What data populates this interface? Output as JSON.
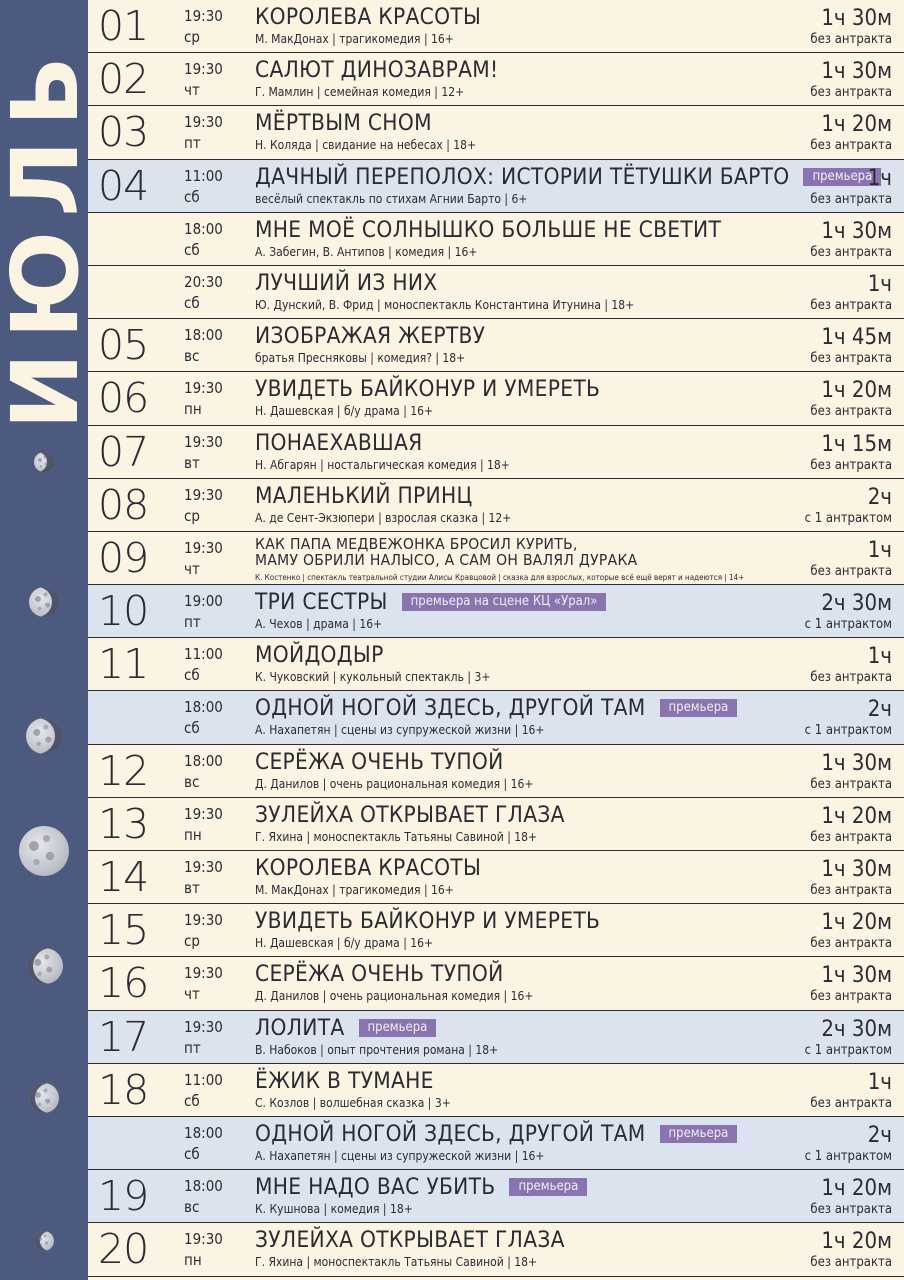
{
  "month": "ИЮЛЬ",
  "colors": {
    "sidebar": "#4d5a80",
    "background": "#fbf4e2",
    "highlight": "#dbe3ef",
    "badge": "#8a74b0"
  },
  "rows": [
    {
      "day": "01",
      "time": "19:30",
      "weekday": "ср",
      "title": "КОРОЛЕВА КРАСОТЫ",
      "meta": "М. МакДонах | трагикомедия | 16+",
      "duration": "1ч 30м",
      "intermission": "без антракта",
      "badge": "",
      "hl": false
    },
    {
      "day": "02",
      "time": "19:30",
      "weekday": "чт",
      "title": "САЛЮТ ДИНОЗАВРАМ!",
      "meta": "Г. Мамлин | семейная комедия | 12+",
      "duration": "1ч 30м",
      "intermission": "без антракта",
      "badge": "",
      "hl": false
    },
    {
      "day": "03",
      "time": "19:30",
      "weekday": "пт",
      "title": "МЁРТВЫМ СНОМ",
      "meta": "Н. Коляда | свидание на небесах | 18+",
      "duration": "1ч 20м",
      "intermission": "без антракта",
      "badge": "",
      "hl": false
    },
    {
      "day": "04",
      "time": "11:00",
      "weekday": "сб",
      "title": "ДАЧНЫЙ ПЕРЕПОЛОХ: ИСТОРИИ ТЁТУШКИ БАРТО",
      "meta": "весёлый спектакль по стихам Агнии Барто | 6+",
      "duration": "1ч",
      "intermission": "без антракта",
      "badge": "премьера",
      "hl": true
    },
    {
      "day": "",
      "time": "18:00",
      "weekday": "сб",
      "title": "МНЕ МОЁ СОЛНЫШКО БОЛЬШЕ НЕ СВЕТИТ",
      "meta": "А. Забегин, В. Антипов | комедия | 16+",
      "duration": "1ч 30м",
      "intermission": "без антракта",
      "badge": "",
      "hl": false
    },
    {
      "day": "",
      "time": "20:30",
      "weekday": "сб",
      "title": "ЛУЧШИЙ ИЗ НИХ",
      "meta": "Ю. Дунский, В. Фрид | моноспектакль Константина Итунина | 18+",
      "duration": "1ч",
      "intermission": "без антракта",
      "badge": "",
      "hl": false
    },
    {
      "day": "05",
      "time": "18:00",
      "weekday": "вс",
      "title": "ИЗОБРАЖАЯ ЖЕРТВУ",
      "meta": "братья Пресняковы | комедия? | 18+",
      "duration": "1ч 45м",
      "intermission": "без антракта",
      "badge": "",
      "hl": false
    },
    {
      "day": "06",
      "time": "19:30",
      "weekday": "пн",
      "title": "УВИДЕТЬ БАЙКОНУР И УМЕРЕТЬ",
      "meta": "Н. Дашевская | б/у драма | 16+",
      "duration": "1ч 20м",
      "intermission": "без антракта",
      "badge": "",
      "hl": false
    },
    {
      "day": "07",
      "time": "19:30",
      "weekday": "вт",
      "title": "ПОНАЕХАВШАЯ",
      "meta": "Н. Абгарян | ностальгическая комедия | 18+",
      "duration": "1ч 15м",
      "intermission": "без антракта",
      "badge": "",
      "hl": false
    },
    {
      "day": "08",
      "time": "19:30",
      "weekday": "ср",
      "title": "МАЛЕНЬКИЙ ПРИНЦ",
      "meta": "А. де Сент-Экзюпери | взрослая сказка | 12+",
      "duration": "2ч",
      "intermission": "с 1 антрактом",
      "badge": "",
      "hl": false
    },
    {
      "day": "09",
      "time": "19:30",
      "weekday": "чт",
      "title": "КАК ПАПА МЕДВЕЖОНКА БРОСИЛ КУРИТЬ,",
      "title2": "МАМУ ОБРИЛИ НАЛЫСО, А САМ ОН ВАЛЯЛ ДУРАКА",
      "meta": "К. Костенко | спектакль театральной студии Алисы Кравцовой | сказка для взрослых, которые всё ещё верят и надеются | 14+",
      "duration": "1ч",
      "intermission": "без антракта",
      "badge": "",
      "hl": false
    },
    {
      "day": "10",
      "time": "19:00",
      "weekday": "пт",
      "title": "ТРИ СЕСТРЫ",
      "meta": "А. Чехов | драма | 16+",
      "duration": "2ч 30м",
      "intermission": "с 1 антрактом",
      "badge": "премьера на сцене КЦ «Урал»",
      "hl": true
    },
    {
      "day": "11",
      "time": "11:00",
      "weekday": "сб",
      "title": "МОЙДОДЫР",
      "meta": "К. Чуковский | кукольный спектакль | 3+",
      "duration": "1ч",
      "intermission": "без антракта",
      "badge": "",
      "hl": false
    },
    {
      "day": "",
      "time": "18:00",
      "weekday": "сб",
      "title": "ОДНОЙ НОГОЙ ЗДЕСЬ, ДРУГОЙ ТАМ",
      "meta": "А. Нахапетян | сцены из супружеской жизни | 16+",
      "duration": "2ч",
      "intermission": "с 1 антрактом",
      "badge": "премьера",
      "hl": true
    },
    {
      "day": "12",
      "time": "18:00",
      "weekday": "вс",
      "title": "СЕРЁЖА ОЧЕНЬ ТУПОЙ",
      "meta": "Д. Данилов | очень рациональная комедия | 16+",
      "duration": "1ч 30м",
      "intermission": "без антракта",
      "badge": "",
      "hl": false
    },
    {
      "day": "13",
      "time": "19:30",
      "weekday": "пн",
      "title": "ЗУЛЕЙХА ОТКРЫВАЕТ ГЛАЗА",
      "meta": "Г. Яхина | моноспектакль Татьяны Савиной | 18+",
      "duration": "1ч 20м",
      "intermission": "без антракта",
      "badge": "",
      "hl": false
    },
    {
      "day": "14",
      "time": "19:30",
      "weekday": "вт",
      "title": "КОРОЛЕВА КРАСОТЫ",
      "meta": "М. МакДонах | трагикомедия | 16+",
      "duration": "1ч 30м",
      "intermission": "без антракта",
      "badge": "",
      "hl": false
    },
    {
      "day": "15",
      "time": "19:30",
      "weekday": "ср",
      "title": "УВИДЕТЬ БАЙКОНУР И УМЕРЕТЬ",
      "meta": "Н. Дашевская | б/у драма | 16+",
      "duration": "1ч 20м",
      "intermission": "без антракта",
      "badge": "",
      "hl": false
    },
    {
      "day": "16",
      "time": "19:30",
      "weekday": "чт",
      "title": "СЕРЁЖА ОЧЕНЬ ТУПОЙ",
      "meta": "Д. Данилов | очень рациональная комедия | 16+",
      "duration": "1ч 30м",
      "intermission": "без антракта",
      "badge": "",
      "hl": false
    },
    {
      "day": "17",
      "time": "19:30",
      "weekday": "пт",
      "title": "ЛОЛИТА",
      "meta": "В. Набоков | опыт прочтения романа | 18+",
      "duration": "2ч 30м",
      "intermission": "с 1 антрактом",
      "badge": "премьера",
      "hl": true
    },
    {
      "day": "18",
      "time": "11:00",
      "weekday": "сб",
      "title": "ЁЖИК В ТУМАНЕ",
      "meta": "С. Козлов | волшебная сказка | 3+",
      "duration": "1ч",
      "intermission": "без антракта",
      "badge": "",
      "hl": false
    },
    {
      "day": "",
      "time": "18:00",
      "weekday": "сб",
      "title": "ОДНОЙ НОГОЙ ЗДЕСЬ, ДРУГОЙ ТАМ",
      "meta": "А. Нахапетян | сцены из супружеской жизни | 16+",
      "duration": "2ч",
      "intermission": "с 1 антрактом",
      "badge": "премьера",
      "hl": true
    },
    {
      "day": "19",
      "time": "18:00",
      "weekday": "вс",
      "title": "МНЕ НАДО ВАС УБИТЬ",
      "meta": "К. Кушнова | комедия | 18+",
      "duration": "1ч 20м",
      "intermission": "без антракта",
      "badge": "премьера",
      "hl": true
    },
    {
      "day": "20",
      "time": "19:30",
      "weekday": "пн",
      "title": "ЗУЛЕЙХА ОТКРЫВАЕТ ГЛАЗА",
      "meta": "Г. Яхина | моноспектакль Татьяны Савиной | 18+",
      "duration": "1ч 20м",
      "intermission": "без антракта",
      "badge": "",
      "hl": false
    }
  ]
}
